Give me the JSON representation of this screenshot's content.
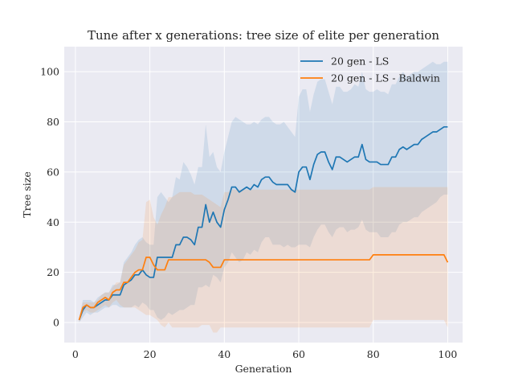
{
  "chart_data": {
    "type": "line",
    "title": "Tune after x generations: tree size of elite per generation",
    "xlabel": "Generation",
    "ylabel": "Tree size",
    "xlim": [
      -3,
      104
    ],
    "ylim": [
      -8,
      110
    ],
    "xticks": [
      0,
      20,
      40,
      60,
      80,
      100
    ],
    "yticks": [
      0,
      20,
      40,
      60,
      80,
      100
    ],
    "grid": true,
    "legend_position": "top-right",
    "x_start": 1,
    "x_step": 1,
    "series": [
      {
        "name": "20 gen - LS",
        "color": "#1f77b4",
        "values": [
          1,
          5,
          7,
          6,
          6,
          7,
          8,
          9,
          9,
          11,
          11,
          11,
          15,
          16,
          17,
          19,
          19,
          21,
          19,
          18,
          18,
          26,
          26,
          26,
          26,
          26,
          31,
          31,
          34,
          34,
          33,
          31,
          38,
          38,
          47,
          40,
          44,
          40,
          38,
          45,
          49,
          54,
          54,
          52,
          53,
          54,
          53,
          55,
          54,
          57,
          58,
          58,
          56,
          55,
          55,
          55,
          55,
          53,
          52,
          60,
          62,
          62,
          57,
          63,
          67,
          68,
          68,
          64,
          61,
          66,
          66,
          65,
          64,
          65,
          66,
          66,
          71,
          65,
          64,
          64,
          64,
          63,
          63,
          63,
          66,
          66,
          69,
          70,
          69,
          70,
          71,
          71,
          73,
          74,
          75,
          76,
          76,
          77,
          78,
          78
        ],
        "band_upper": [
          2,
          9,
          9,
          9,
          8,
          10,
          11,
          12,
          12,
          15,
          15,
          16,
          24,
          26,
          28,
          31,
          33,
          34,
          32,
          31,
          31,
          50,
          52,
          50,
          48,
          50,
          58,
          57,
          64,
          62,
          59,
          55,
          62,
          62,
          79,
          66,
          68,
          62,
          60,
          68,
          74,
          80,
          82,
          81,
          80,
          79,
          79,
          80,
          79,
          81,
          82,
          82,
          80,
          79,
          79,
          80,
          78,
          76,
          74,
          90,
          93,
          93,
          84,
          91,
          96,
          97,
          97,
          92,
          87,
          94,
          94,
          92,
          92,
          93,
          95,
          94,
          100,
          93,
          92,
          92,
          93,
          92,
          92,
          91,
          95,
          95,
          98,
          100,
          98,
          99,
          100,
          100,
          101,
          102,
          103,
          104,
          103,
          103,
          104,
          104
        ],
        "band_lower": [
          0,
          2,
          4,
          3,
          4,
          4,
          5,
          6,
          6,
          7,
          7,
          6,
          6,
          6,
          6,
          7,
          6,
          8,
          7,
          5,
          5,
          2,
          1,
          2,
          4,
          3,
          4,
          5,
          5,
          6,
          7,
          7,
          14,
          14,
          15,
          14,
          19,
          18,
          16,
          22,
          24,
          28,
          26,
          24,
          25,
          28,
          27,
          29,
          28,
          32,
          34,
          34,
          31,
          31,
          31,
          30,
          31,
          30,
          30,
          31,
          31,
          31,
          30,
          34,
          37,
          39,
          39,
          36,
          34,
          37,
          38,
          38,
          36,
          37,
          37,
          38,
          41,
          37,
          36,
          36,
          36,
          34,
          34,
          34,
          36,
          36,
          39,
          40,
          40,
          41,
          42,
          42,
          44,
          45,
          46,
          47,
          48,
          50,
          51,
          51
        ]
      },
      {
        "name": "20 gen - LS - Baldwin",
        "color": "#ff7f0e",
        "values": [
          1,
          6,
          7,
          6,
          6,
          8,
          9,
          10,
          9,
          12,
          13,
          13,
          16,
          16,
          18,
          20,
          21,
          21,
          26,
          26,
          23,
          21,
          21,
          21,
          25,
          25,
          25,
          25,
          25,
          25,
          25,
          25,
          25,
          25,
          25,
          24,
          22,
          22,
          22,
          25,
          25,
          25,
          25,
          25,
          25,
          25,
          25,
          25,
          25,
          25,
          25,
          25,
          25,
          25,
          25,
          25,
          25,
          25,
          25,
          25,
          25,
          25,
          25,
          25,
          25,
          25,
          25,
          25,
          25,
          25,
          25,
          25,
          25,
          25,
          25,
          25,
          25,
          25,
          25,
          27,
          27,
          27,
          27,
          27,
          27,
          27,
          27,
          27,
          27,
          27,
          27,
          27,
          27,
          27,
          27,
          27,
          27,
          27,
          27,
          24
        ],
        "band_upper": [
          1,
          8,
          8,
          8,
          8,
          9,
          11,
          12,
          12,
          14,
          16,
          16,
          23,
          25,
          27,
          29,
          32,
          33,
          48,
          49,
          42,
          39,
          43,
          46,
          50,
          50,
          51,
          52,
          52,
          52,
          52,
          51,
          51,
          51,
          50,
          49,
          48,
          47,
          46,
          52,
          52,
          53,
          53,
          53,
          53,
          53,
          53,
          53,
          53,
          53,
          53,
          53,
          53,
          53,
          53,
          53,
          53,
          53,
          53,
          53,
          53,
          53,
          53,
          53,
          53,
          53,
          53,
          53,
          53,
          53,
          53,
          53,
          53,
          53,
          53,
          53,
          53,
          53,
          53,
          54,
          54,
          54,
          54,
          54,
          54,
          54,
          54,
          54,
          54,
          54,
          54,
          54,
          54,
          54,
          54,
          54,
          54,
          54,
          54,
          54
        ],
        "band_lower": [
          0,
          4,
          5,
          4,
          4,
          5,
          6,
          7,
          6,
          8,
          9,
          7,
          6,
          6,
          6,
          6,
          5,
          4,
          3,
          3,
          2,
          1,
          -1,
          -2,
          0,
          -2,
          -2,
          -2,
          -2,
          -2,
          -2,
          -2,
          -2,
          -1,
          -1,
          -1,
          -4,
          -4,
          -2,
          -2,
          -2,
          -2,
          -2,
          -2,
          -2,
          -2,
          -2,
          -2,
          -2,
          -2,
          -2,
          -2,
          -2,
          -2,
          -2,
          -2,
          -2,
          -2,
          -2,
          -2,
          -2,
          -2,
          -2,
          -2,
          -2,
          -2,
          -2,
          -2,
          -2,
          -2,
          -2,
          -2,
          -2,
          -2,
          -2,
          -2,
          -2,
          -2,
          -2,
          1,
          1,
          1,
          1,
          1,
          1,
          1,
          1,
          1,
          1,
          1,
          1,
          1,
          1,
          1,
          1,
          1,
          1,
          1,
          1,
          -2
        ]
      }
    ]
  }
}
